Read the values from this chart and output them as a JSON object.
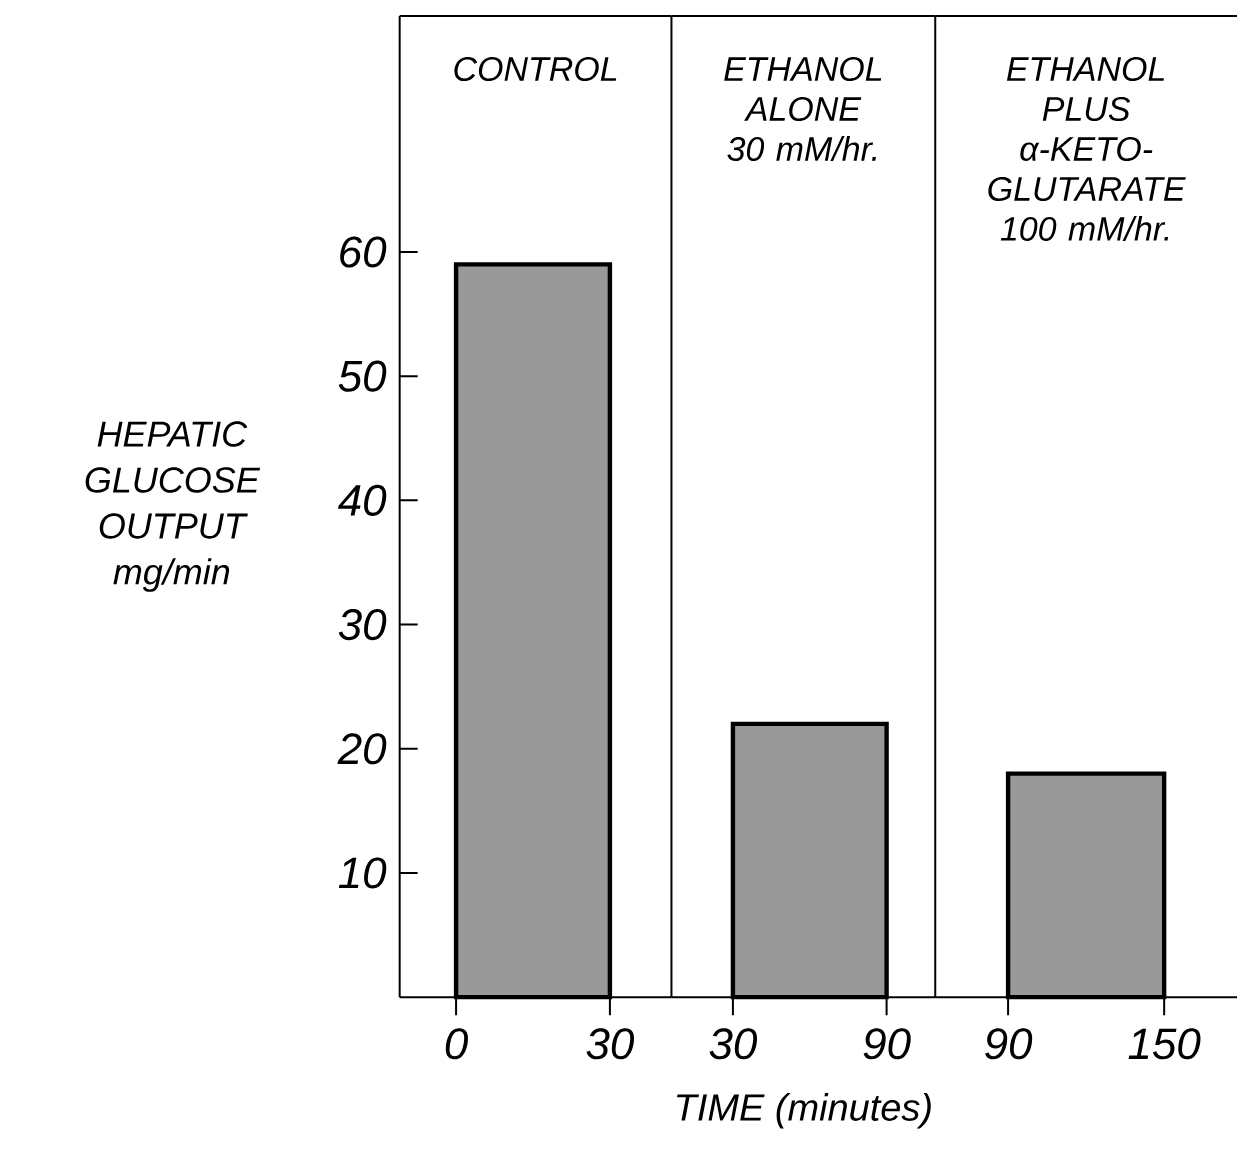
{
  "chart_data": [
    {
      "type": "histogram",
      "title": "CONTROL",
      "ylabel": "HEPATIC GLUCOSE OUTPUT mg/min",
      "color": "#000000",
      "bins": [
        0,
        30
      ],
      "values": [
        59
      ],
      "xlim": [
        -11,
        42
      ],
      "xticks": [
        0,
        30
      ],
      "ylim": [
        0,
        79
      ],
      "yticks": [
        10,
        20,
        30,
        40,
        50,
        60
      ],
      "grid": false
    },
    {
      "type": "histogram",
      "title": "ETHANOL ALONE 30 mM/hr.",
      "xlabel": "TIME (minutes)",
      "color": "#000000",
      "bins": [
        30,
        90
      ],
      "values": [
        22
      ],
      "xlim": [
        6,
        109
      ],
      "xticks": [
        30,
        90
      ],
      "ylim": [
        0,
        79
      ],
      "tick_labels": "x",
      "grid": false
    },
    {
      "type": "histogram",
      "title": "ETHANOL PLUS α-KETO-GLUTARATE 100 mM/hr.",
      "color": "#000000",
      "bins": [
        90,
        150
      ],
      "values": [
        18
      ],
      "xlim": [
        62,
        178
      ],
      "xticks": [
        90,
        150
      ],
      "ylim": [
        0,
        79
      ],
      "tick_labels": "x",
      "grid": false
    }
  ]
}
